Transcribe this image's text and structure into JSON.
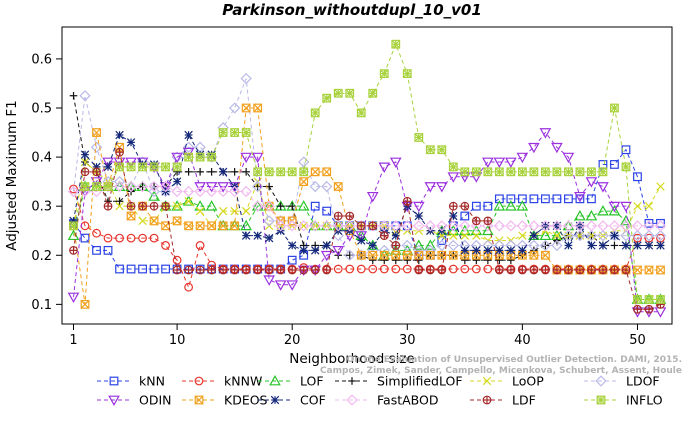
{
  "chart_data": {
    "type": "line",
    "title": "Parkinson_withoutdupl_10_v01",
    "xlabel": "Neighborhood size",
    "ylabel": "Adjusted Maximum F1",
    "xlim": [
      0,
      53
    ],
    "ylim": [
      0.06,
      0.665
    ],
    "xticks": [
      1,
      10,
      20,
      30,
      40,
      50
    ],
    "yticks": [
      0.1,
      0.2,
      0.3,
      0.4,
      0.5,
      0.6
    ],
    "grid": false,
    "legend_position": "bottom",
    "credit": {
      "line1": "Campos, Zimek, Sander, Campello, Micenkova, Schubert, Assent, Houle",
      "line2": "On the Evaluation of Unsupervised Outlier Detection. DAMI, 2015."
    },
    "series": [
      {
        "name": "kNN",
        "color": "#2b43e6",
        "marker": "square",
        "values": [
          0.265,
          0.235,
          0.21,
          0.21,
          0.172,
          0.172,
          0.172,
          0.172,
          0.172,
          0.172,
          0.172,
          0.172,
          0.172,
          0.172,
          0.172,
          0.172,
          0.172,
          0.172,
          0.172,
          0.19,
          0.2,
          0.3,
          0.29,
          0.26,
          0.26,
          0.26,
          0.26,
          0.26,
          0.26,
          0.26,
          0.2,
          0.2,
          0.23,
          0.26,
          0.28,
          0.3,
          0.3,
          0.315,
          0.315,
          0.315,
          0.315,
          0.315,
          0.315,
          0.315,
          0.315,
          0.315,
          0.385,
          0.385,
          0.415,
          0.36,
          0.265,
          0.265
        ]
      },
      {
        "name": "kNNW",
        "color": "#e8332a",
        "marker": "circle",
        "values": [
          0.335,
          0.26,
          0.245,
          0.235,
          0.235,
          0.235,
          0.235,
          0.235,
          0.22,
          0.19,
          0.135,
          0.22,
          0.18,
          0.172,
          0.172,
          0.172,
          0.172,
          0.172,
          0.172,
          0.172,
          0.175,
          0.172,
          0.172,
          0.172,
          0.172,
          0.172,
          0.172,
          0.172,
          0.172,
          0.172,
          0.172,
          0.172,
          0.172,
          0.172,
          0.172,
          0.172,
          0.172,
          0.172,
          0.172,
          0.172,
          0.172,
          0.172,
          0.172,
          0.172,
          0.172,
          0.172,
          0.172,
          0.172,
          0.172,
          0.235,
          0.235,
          0.235
        ]
      },
      {
        "name": "LOF",
        "color": "#27c427",
        "marker": "triangle",
        "values": [
          0.24,
          0.34,
          0.34,
          0.34,
          0.34,
          0.34,
          0.34,
          0.32,
          0.3,
          0.3,
          0.31,
          0.3,
          0.3,
          0.26,
          0.26,
          0.26,
          0.3,
          0.3,
          0.3,
          0.3,
          0.3,
          0.26,
          0.26,
          0.26,
          0.26,
          0.24,
          0.22,
          0.2,
          0.21,
          0.21,
          0.22,
          0.22,
          0.25,
          0.25,
          0.25,
          0.25,
          0.25,
          0.3,
          0.3,
          0.3,
          0.24,
          0.24,
          0.24,
          0.26,
          0.28,
          0.28,
          0.29,
          0.29,
          0.27,
          0.11,
          0.11,
          0.11
        ]
      },
      {
        "name": "SimplifiedLOF",
        "color": "#111111",
        "marker": "plus",
        "values": [
          0.525,
          0.39,
          0.37,
          0.31,
          0.31,
          0.33,
          0.34,
          0.34,
          0.34,
          0.37,
          0.37,
          0.37,
          0.37,
          0.37,
          0.37,
          0.37,
          0.34,
          0.34,
          0.3,
          0.3,
          0.22,
          0.22,
          0.22,
          0.2,
          0.2,
          0.2,
          0.19,
          0.19,
          0.19,
          0.19,
          0.19,
          0.2,
          0.2,
          0.2,
          0.19,
          0.19,
          0.19,
          0.19,
          0.19,
          0.2,
          0.21,
          0.22,
          0.23,
          0.24,
          0.24,
          0.24,
          0.22,
          0.22,
          0.22,
          0.22,
          0.22,
          0.22
        ]
      },
      {
        "name": "LoOP",
        "color": "#d6d91f",
        "marker": "x",
        "values": [
          0.26,
          0.39,
          0.37,
          0.35,
          0.3,
          0.3,
          0.27,
          0.27,
          0.3,
          0.3,
          0.31,
          0.29,
          0.26,
          0.29,
          0.29,
          0.29,
          0.35,
          0.26,
          0.26,
          0.26,
          0.26,
          0.26,
          0.26,
          0.26,
          0.26,
          0.26,
          0.26,
          0.26,
          0.25,
          0.25,
          0.25,
          0.25,
          0.24,
          0.24,
          0.24,
          0.24,
          0.23,
          0.23,
          0.23,
          0.24,
          0.24,
          0.25,
          0.24,
          0.24,
          0.24,
          0.24,
          0.24,
          0.25,
          0.25,
          0.3,
          0.3,
          0.34
        ]
      },
      {
        "name": "LDOF",
        "color": "#b9b9e8",
        "marker": "diamond",
        "values": [
          0.33,
          0.525,
          0.42,
          0.35,
          0.35,
          0.34,
          0.39,
          0.33,
          0.33,
          0.4,
          0.42,
          0.42,
          0.4,
          0.46,
          0.5,
          0.56,
          0.34,
          0.27,
          0.27,
          0.27,
          0.39,
          0.34,
          0.34,
          0.24,
          0.2,
          0.2,
          0.21,
          0.21,
          0.22,
          0.22,
          0.21,
          0.21,
          0.22,
          0.22,
          0.22,
          0.22,
          0.22,
          0.22,
          0.22,
          0.22,
          0.22,
          0.22,
          0.22,
          0.24,
          0.24,
          0.24,
          0.24,
          0.24,
          0.24,
          0.24,
          0.24,
          0.24
        ]
      },
      {
        "name": "ODIN",
        "color": "#9b30e0",
        "marker": "triangle-down",
        "values": [
          0.115,
          0.33,
          0.35,
          0.39,
          0.39,
          0.39,
          0.39,
          0.38,
          0.34,
          0.4,
          0.41,
          0.34,
          0.34,
          0.34,
          0.34,
          0.4,
          0.4,
          0.15,
          0.14,
          0.14,
          0.17,
          0.17,
          0.2,
          0.21,
          0.24,
          0.24,
          0.32,
          0.38,
          0.39,
          0.3,
          0.3,
          0.34,
          0.34,
          0.36,
          0.36,
          0.36,
          0.39,
          0.39,
          0.39,
          0.4,
          0.42,
          0.45,
          0.42,
          0.4,
          0.32,
          0.35,
          0.34,
          0.3,
          0.3,
          0.085,
          0.085,
          0.085
        ]
      },
      {
        "name": "KDEOS",
        "color": "#f2a11e",
        "marker": "square-x",
        "values": [
          0.26,
          0.1,
          0.45,
          0.34,
          0.42,
          0.28,
          0.3,
          0.27,
          0.26,
          0.27,
          0.26,
          0.26,
          0.26,
          0.26,
          0.26,
          0.5,
          0.5,
          0.3,
          0.27,
          0.27,
          0.35,
          0.37,
          0.37,
          0.34,
          0.25,
          0.2,
          0.2,
          0.2,
          0.2,
          0.2,
          0.2,
          0.2,
          0.2,
          0.2,
          0.2,
          0.2,
          0.2,
          0.2,
          0.2,
          0.2,
          0.2,
          0.2,
          0.17,
          0.17,
          0.17,
          0.17,
          0.17,
          0.17,
          0.17,
          0.17,
          0.17,
          0.17
        ]
      },
      {
        "name": "COF",
        "color": "#14287a",
        "marker": "star",
        "values": [
          0.27,
          0.405,
          0.38,
          0.38,
          0.445,
          0.43,
          0.385,
          0.385,
          0.33,
          0.35,
          0.445,
          0.405,
          0.405,
          0.37,
          0.34,
          0.24,
          0.24,
          0.235,
          0.25,
          0.22,
          0.21,
          0.21,
          0.22,
          0.25,
          0.25,
          0.23,
          0.22,
          0.25,
          0.24,
          0.3,
          0.28,
          0.25,
          0.25,
          0.28,
          0.21,
          0.21,
          0.21,
          0.21,
          0.21,
          0.21,
          0.24,
          0.26,
          0.26,
          0.22,
          0.26,
          0.22,
          0.22,
          0.24,
          0.22,
          0.22,
          0.22,
          0.22
        ]
      },
      {
        "name": "FastABOD",
        "color": "#f2b8f0",
        "marker": "diamond",
        "values": [
          0.33,
          0.33,
          0.33,
          0.34,
          0.34,
          0.34,
          0.34,
          0.34,
          0.34,
          0.33,
          0.33,
          0.33,
          0.33,
          0.33,
          0.33,
          0.33,
          0.3,
          0.3,
          0.26,
          0.26,
          0.26,
          0.26,
          0.26,
          0.26,
          0.26,
          0.26,
          0.26,
          0.26,
          0.26,
          0.26,
          0.26,
          0.26,
          0.26,
          0.26,
          0.26,
          0.26,
          0.26,
          0.26,
          0.26,
          0.26,
          0.26,
          0.26,
          0.26,
          0.26,
          0.26,
          0.26,
          0.26,
          0.26,
          0.26,
          0.26,
          0.26,
          0.26
        ]
      },
      {
        "name": "LDF",
        "color": "#a52a2a",
        "marker": "circle-plus",
        "values": [
          0.21,
          0.37,
          0.37,
          0.3,
          0.41,
          0.3,
          0.3,
          0.3,
          0.3,
          0.17,
          0.17,
          0.17,
          0.17,
          0.17,
          0.17,
          0.17,
          0.17,
          0.17,
          0.17,
          0.17,
          0.17,
          0.17,
          0.17,
          0.28,
          0.28,
          0.26,
          0.26,
          0.24,
          0.22,
          0.31,
          0.17,
          0.17,
          0.17,
          0.3,
          0.3,
          0.27,
          0.27,
          0.17,
          0.17,
          0.17,
          0.17,
          0.17,
          0.17,
          0.17,
          0.17,
          0.17,
          0.17,
          0.17,
          0.17,
          0.09,
          0.09,
          0.1
        ]
      },
      {
        "name": "INFLO",
        "color": "#a8d23c",
        "marker": "square-star",
        "values": [
          0.26,
          0.34,
          0.34,
          0.34,
          0.38,
          0.38,
          0.38,
          0.38,
          0.38,
          0.38,
          0.4,
          0.4,
          0.4,
          0.45,
          0.45,
          0.45,
          0.37,
          0.37,
          0.37,
          0.37,
          0.37,
          0.49,
          0.52,
          0.53,
          0.53,
          0.49,
          0.53,
          0.57,
          0.63,
          0.57,
          0.44,
          0.415,
          0.415,
          0.38,
          0.37,
          0.37,
          0.37,
          0.37,
          0.37,
          0.37,
          0.37,
          0.37,
          0.37,
          0.37,
          0.37,
          0.37,
          0.37,
          0.5,
          0.38,
          0.11,
          0.11,
          0.11
        ]
      }
    ]
  }
}
